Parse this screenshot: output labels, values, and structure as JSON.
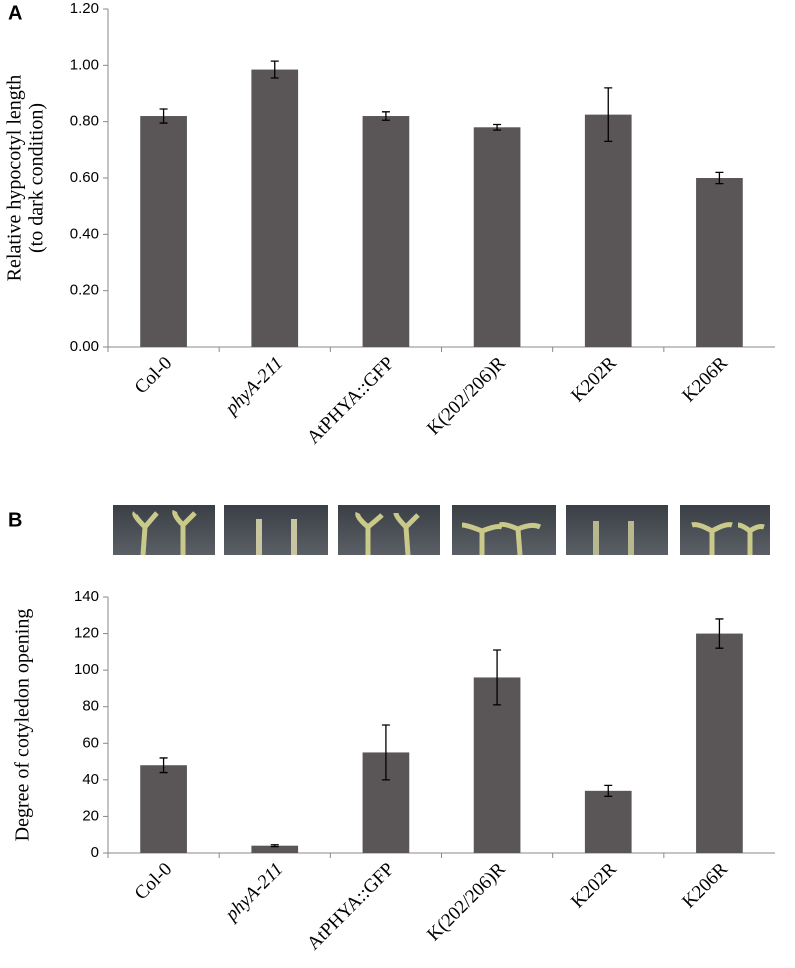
{
  "chart_data": [
    {
      "type": "bar",
      "panel_label": "A",
      "ylabel": [
        "Relative hypocotyl length",
        "(to dark condition)"
      ],
      "categories": [
        "Col-0",
        "phyA-211",
        "AtPHYA::GFP",
        "K(202/206)R",
        "K202R",
        "K206R"
      ],
      "values": [
        0.82,
        0.985,
        0.82,
        0.78,
        0.825,
        0.6
      ],
      "errors": [
        0.025,
        0.03,
        0.015,
        0.01,
        0.095,
        0.02
      ],
      "color": "#5a5657",
      "ylim": [
        0,
        1.2
      ],
      "yticks": [
        {
          "value": 0,
          "label": "0.00"
        },
        {
          "value": 0.2,
          "label": "0.20"
        },
        {
          "value": 0.4,
          "label": "0.40"
        },
        {
          "value": 0.6,
          "label": "0.60"
        },
        {
          "value": 0.8,
          "label": "0.80"
        },
        {
          "value": 1,
          "label": "1.00"
        },
        {
          "value": 1.2,
          "label": "1.20"
        }
      ]
    },
    {
      "type": "bar",
      "panel_label": "B",
      "ylabel": [
        "Degree of cotyledon opening"
      ],
      "categories": [
        "Col-0",
        "phyA-211",
        "AtPHYA::GFP",
        "K(202/206)R",
        "K202R",
        "K206R"
      ],
      "values": [
        48,
        4,
        55,
        96,
        34,
        120
      ],
      "errors": [
        4,
        0.5,
        15,
        15,
        3,
        8
      ],
      "color": "#5a5657",
      "ylim": [
        0,
        140
      ],
      "yticks": [
        0,
        20,
        40,
        60,
        80,
        100,
        120,
        140
      ]
    }
  ]
}
